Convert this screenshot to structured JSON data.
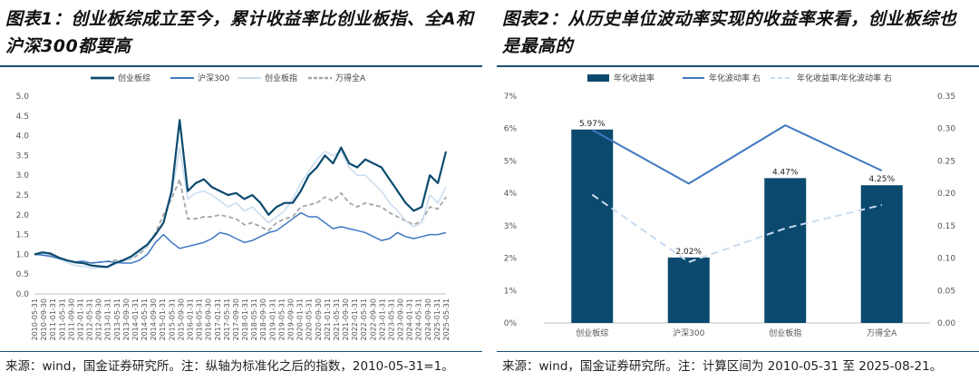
{
  "left": {
    "title": "图表1：创业板综成立至今，累计收益率比创业板指、全A和沪深300都要高",
    "source": "来源：wind，国金证券研究所。注：纵轴为标准化之后的指数，2010-05-31=1。",
    "chart_data": {
      "type": "line",
      "ylim": [
        0,
        5
      ],
      "y_ticks": [
        "0.0",
        "0.5",
        "1.0",
        "1.5",
        "2.0",
        "2.5",
        "3.0",
        "3.5",
        "4.0",
        "4.5",
        "5.0"
      ],
      "x_ticks": [
        "2010-05-31",
        "2010-09-30",
        "2011-01-31",
        "2011-05-31",
        "2011-09-30",
        "2012-01-31",
        "2012-05-31",
        "2012-09-30",
        "2013-01-31",
        "2013-05-31",
        "2013-09-30",
        "2014-01-31",
        "2014-05-31",
        "2014-09-30",
        "2015-01-31",
        "2015-05-31",
        "2015-09-30",
        "2016-01-31",
        "2016-05-31",
        "2016-09-30",
        "2017-01-31",
        "2017-05-31",
        "2017-09-30",
        "2018-01-31",
        "2018-05-31",
        "2018-09-30",
        "2019-01-31",
        "2019-05-31",
        "2019-09-30",
        "2020-01-31",
        "2020-05-31",
        "2020-09-30",
        "2021-01-31",
        "2021-05-31",
        "2021-09-30",
        "2022-01-31",
        "2022-05-31",
        "2022-09-30",
        "2023-01-31",
        "2023-05-31",
        "2023-09-30",
        "2024-01-31",
        "2024-05-31",
        "2024-09-30",
        "2025-01-31",
        "2025-05-31"
      ],
      "legend": [
        "创业板综",
        "沪深300",
        "创业板指",
        "万得全A"
      ],
      "series": [
        {
          "name": "创业板综",
          "color": "#0b4a6e",
          "style": "solid",
          "width": 2.2,
          "values": [
            1.0,
            1.05,
            1.02,
            0.92,
            0.85,
            0.8,
            0.78,
            0.72,
            0.7,
            0.68,
            0.78,
            0.85,
            0.95,
            1.1,
            1.25,
            1.5,
            1.8,
            2.6,
            4.4,
            2.6,
            2.8,
            2.9,
            2.7,
            2.6,
            2.5,
            2.55,
            2.4,
            2.5,
            2.3,
            2.0,
            2.2,
            2.3,
            2.3,
            2.6,
            3.0,
            3.2,
            3.5,
            3.3,
            3.7,
            3.3,
            3.2,
            3.4,
            3.3,
            3.2,
            2.9,
            2.6,
            2.3,
            2.1,
            2.2,
            3.0,
            2.8,
            3.6
          ]
        },
        {
          "name": "沪深300",
          "color": "#3f78c1",
          "style": "solid",
          "width": 1.5,
          "values": [
            1.0,
            0.98,
            0.95,
            0.9,
            0.85,
            0.8,
            0.83,
            0.78,
            0.8,
            0.82,
            0.8,
            0.78,
            0.78,
            0.85,
            1.0,
            1.3,
            1.5,
            1.3,
            1.15,
            1.2,
            1.25,
            1.3,
            1.4,
            1.55,
            1.5,
            1.4,
            1.3,
            1.35,
            1.45,
            1.55,
            1.6,
            1.75,
            1.9,
            2.05,
            1.95,
            1.95,
            1.8,
            1.65,
            1.7,
            1.65,
            1.6,
            1.55,
            1.45,
            1.35,
            1.4,
            1.55,
            1.45,
            1.4,
            1.45,
            1.5,
            1.5,
            1.55
          ]
        },
        {
          "name": "创业板指",
          "color": "#c8dcf0",
          "style": "solid",
          "width": 1.5,
          "values": [
            1.0,
            1.02,
            0.95,
            0.88,
            0.8,
            0.72,
            0.7,
            0.65,
            0.66,
            0.68,
            0.75,
            0.82,
            0.9,
            1.05,
            1.2,
            1.5,
            1.8,
            2.5,
            3.7,
            2.4,
            2.55,
            2.6,
            2.5,
            2.35,
            2.2,
            2.3,
            2.1,
            2.2,
            2.0,
            1.8,
            1.95,
            2.1,
            2.4,
            2.8,
            3.1,
            3.4,
            3.6,
            3.5,
            3.6,
            3.2,
            3.0,
            3.0,
            2.8,
            2.6,
            2.3,
            2.1,
            1.85,
            1.7,
            1.8,
            2.5,
            2.3,
            2.7
          ]
        },
        {
          "name": "万得全A",
          "color": "#a6a6a6",
          "style": "dashed",
          "width": 1.8,
          "values": [
            1.0,
            1.02,
            0.98,
            0.92,
            0.85,
            0.82,
            0.8,
            0.78,
            0.8,
            0.82,
            0.85,
            0.85,
            0.88,
            1.0,
            1.2,
            1.55,
            2.0,
            2.4,
            2.9,
            1.9,
            1.9,
            1.95,
            1.95,
            2.0,
            1.95,
            1.9,
            1.75,
            1.8,
            1.7,
            1.6,
            1.8,
            1.9,
            1.95,
            2.2,
            2.25,
            2.3,
            2.45,
            2.35,
            2.55,
            2.3,
            2.2,
            2.3,
            2.25,
            2.2,
            2.05,
            1.95,
            1.85,
            1.75,
            1.85,
            2.2,
            2.15,
            2.45
          ]
        }
      ]
    }
  },
  "right": {
    "title": "图表2：从历史单位波动率实现的收益率来看，创业板综也是最高的",
    "source": "来源：wind，国金证券研究所。注：计算区间为 2010-05-31 至 2025-08-21。",
    "chart_data": {
      "type": "bar",
      "categories": [
        "创业板综",
        "沪深300",
        "创业板指",
        "万得全A"
      ],
      "legend": [
        "年化收益率",
        "年化波动率 右",
        "年化收益率/年化波动率 右"
      ],
      "y_left_ticks": [
        "0%",
        "1%",
        "2%",
        "3%",
        "4%",
        "5%",
        "6%",
        "7%"
      ],
      "y_left_lim": [
        0,
        7
      ],
      "y_right_ticks": [
        "0.00",
        "0.05",
        "0.10",
        "0.15",
        "0.20",
        "0.25",
        "0.30",
        "0.35"
      ],
      "y_right_lim": [
        0,
        0.35
      ],
      "series": [
        {
          "name": "年化收益率",
          "axis": "left",
          "kind": "bar",
          "color": "#0b4a6e",
          "values": [
            5.97,
            2.02,
            4.47,
            4.25
          ],
          "labels": [
            "5.97%",
            "2.02%",
            "4.47%",
            "4.25%"
          ]
        },
        {
          "name": "年化波动率 右",
          "axis": "right",
          "kind": "line",
          "color": "#3f78c1",
          "values": [
            0.298,
            0.215,
            0.305,
            0.235
          ]
        },
        {
          "name": "年化收益率/年化波动率 右",
          "axis": "right",
          "kind": "dashed",
          "color": "#c8dcf0",
          "values": [
            0.198,
            0.094,
            0.146,
            0.182
          ]
        }
      ]
    }
  }
}
